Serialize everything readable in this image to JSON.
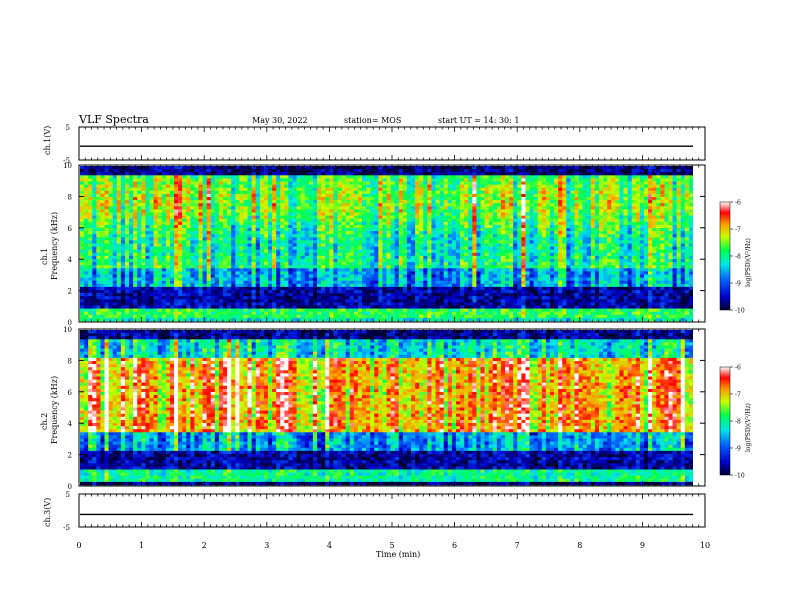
{
  "header": {
    "title": "VLF Spectra",
    "date": "May 30, 2022",
    "station": "station= MOS",
    "start_ut": "start  UT  =   14: 30: 1"
  },
  "chart_data": [
    {
      "type": "line",
      "panel": "ch1-voltage",
      "ylabel": "ch.1(V)",
      "ylim": [
        -5,
        5
      ],
      "yticks": [
        "5",
        "-5"
      ],
      "series": [
        {
          "values_summary": "near-constant trace slightly below 0 V",
          "value": -0.8
        }
      ]
    },
    {
      "type": "heatmap",
      "panel": "ch1-spectrogram",
      "ylabel": "ch.1\nFrequency  (kHz)",
      "ylim": [
        0,
        10
      ],
      "yticks": [
        "0",
        "2",
        "4",
        "6",
        "8",
        "10"
      ],
      "colorbar": {
        "label": "log(PSD)(V²/Hz)",
        "range": [
          -10,
          -6
        ],
        "ticks": [
          "-6",
          "-7",
          "-8",
          "-9",
          "-10"
        ]
      },
      "description_bands_khz": {
        "dark_floor": [
          0.2,
          2.2
        ],
        "active": [
          2.2,
          9.5
        ]
      }
    },
    {
      "type": "heatmap",
      "panel": "ch2-spectrogram",
      "ylabel": "ch.2\nFrequency  (kHz)",
      "ylim": [
        0,
        10
      ],
      "yticks": [
        "0",
        "2",
        "4",
        "6",
        "8",
        "10"
      ],
      "colorbar": {
        "label": "log(PSD)(V²/Hz)",
        "range": [
          -10,
          -6
        ],
        "ticks": [
          "-6",
          "-7",
          "-8",
          "-9",
          "-10"
        ]
      },
      "description_bands_khz": {
        "dark_floor": [
          0.2,
          2.2
        ],
        "intense": [
          3.5,
          8.0
        ]
      }
    },
    {
      "type": "line",
      "panel": "ch3-voltage",
      "ylabel": "ch.3(V)",
      "ylim": [
        -5,
        5
      ],
      "yticks": [
        "5",
        "-5"
      ],
      "series": [
        {
          "values_summary": "near-constant trace slightly below 0 V",
          "value": -1.2
        }
      ]
    }
  ],
  "xaxis": {
    "xlabel": "Time  (min)",
    "xlim": [
      0,
      10
    ],
    "xticks": [
      "0",
      "1",
      "2",
      "3",
      "4",
      "5",
      "6",
      "7",
      "8",
      "9",
      "10"
    ]
  },
  "colors": {
    "background": "#ffffff",
    "axis": "#000000",
    "cmap": [
      "#000040",
      "#0000ff",
      "#00c8ff",
      "#00ff64",
      "#c8ff00",
      "#ffa000",
      "#ff0000",
      "#ffffff"
    ]
  }
}
